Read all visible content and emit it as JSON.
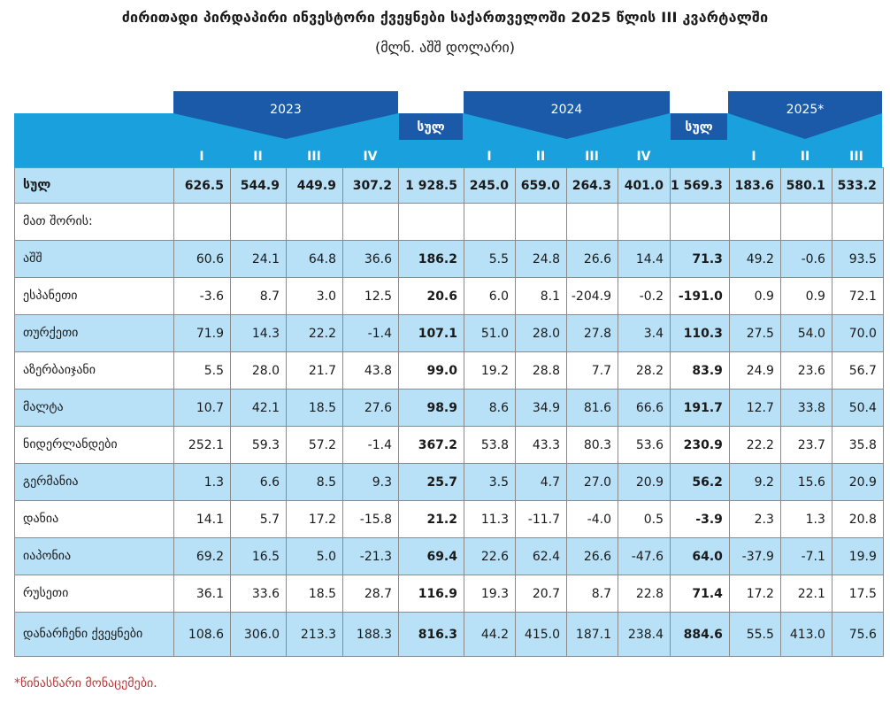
{
  "title": "ძირითადი პირდაპირი ინვესტორი ქვეყნები საქართველოში 2025 წლის III კვარტალში",
  "subtitle": "(მლნ. აშშ დოლარი)",
  "header": {
    "year1": "2023",
    "year2": "2024",
    "year3": "2025*",
    "total_label": "სულ",
    "quarters": [
      "I",
      "II",
      "III",
      "IV",
      "I",
      "II",
      "III",
      "IV",
      "I",
      "II",
      "III"
    ]
  },
  "rows": [
    {
      "label": "სულ",
      "values": [
        "626.5",
        "544.9",
        "449.9",
        "307.2",
        "1 928.5",
        "245.0",
        "659.0",
        "264.3",
        "401.0",
        "1 569.3",
        "183.6",
        "580.1",
        "533.2"
      ]
    },
    {
      "label": "მათ შორის:",
      "values": [
        "",
        "",
        "",
        "",
        "",
        "",
        "",
        "",
        "",
        "",
        "",
        "",
        ""
      ]
    },
    {
      "label": "აშშ",
      "values": [
        "60.6",
        "24.1",
        "64.8",
        "36.6",
        "186.2",
        "5.5",
        "24.8",
        "26.6",
        "14.4",
        "71.3",
        "49.2",
        "-0.6",
        "93.5"
      ]
    },
    {
      "label": "ესპანეთი",
      "values": [
        "-3.6",
        "8.7",
        "3.0",
        "12.5",
        "20.6",
        "6.0",
        "8.1",
        "-204.9",
        "-0.2",
        "-191.0",
        "0.9",
        "0.9",
        "72.1"
      ]
    },
    {
      "label": "თურქეთი",
      "values": [
        "71.9",
        "14.3",
        "22.2",
        "-1.4",
        "107.1",
        "51.0",
        "28.0",
        "27.8",
        "3.4",
        "110.3",
        "27.5",
        "54.0",
        "70.0"
      ]
    },
    {
      "label": "აზერბაიჯანი",
      "values": [
        "5.5",
        "28.0",
        "21.7",
        "43.8",
        "99.0",
        "19.2",
        "28.8",
        "7.7",
        "28.2",
        "83.9",
        "24.9",
        "23.6",
        "56.7"
      ]
    },
    {
      "label": "მალტა",
      "values": [
        "10.7",
        "42.1",
        "18.5",
        "27.6",
        "98.9",
        "8.6",
        "34.9",
        "81.6",
        "66.6",
        "191.7",
        "12.7",
        "33.8",
        "50.4"
      ]
    },
    {
      "label": "ნიდერლანდები",
      "values": [
        "252.1",
        "59.3",
        "57.2",
        "-1.4",
        "367.2",
        "53.8",
        "43.3",
        "80.3",
        "53.6",
        "230.9",
        "22.2",
        "23.7",
        "35.8"
      ]
    },
    {
      "label": "გერმანია",
      "values": [
        "1.3",
        "6.6",
        "8.5",
        "9.3",
        "25.7",
        "3.5",
        "4.7",
        "27.0",
        "20.9",
        "56.2",
        "9.2",
        "15.6",
        "20.9"
      ]
    },
    {
      "label": "დანია",
      "values": [
        "14.1",
        "5.7",
        "17.2",
        "-15.8",
        "21.2",
        "11.3",
        "-11.7",
        "-4.0",
        "0.5",
        "-3.9",
        "2.3",
        "1.3",
        "20.8"
      ]
    },
    {
      "label": "იაპონია",
      "values": [
        "69.2",
        "16.5",
        "5.0",
        "-21.3",
        "69.4",
        "22.6",
        "62.4",
        "26.6",
        "-47.6",
        "64.0",
        "-37.9",
        "-7.1",
        "19.9"
      ]
    },
    {
      "label": "რუსეთი",
      "values": [
        "36.1",
        "33.6",
        "18.5",
        "28.7",
        "116.9",
        "19.3",
        "20.7",
        "8.7",
        "22.8",
        "71.4",
        "17.2",
        "22.1",
        "17.5"
      ]
    },
    {
      "label": "დანარჩენი ქვეყნები",
      "values": [
        "108.6",
        "306.0",
        "213.3",
        "188.3",
        "816.3",
        "44.2",
        "415.0",
        "187.1",
        "238.4",
        "884.6",
        "55.5",
        "413.0",
        "75.6"
      ]
    }
  ],
  "footnote": "*წინასწარი მონაცემები.",
  "colors": {
    "light_blue": "#b8e1f7",
    "mid_blue": "#1aa0dc",
    "dark_blue": "#1b5aa8",
    "footnote_red": "#b83838"
  }
}
